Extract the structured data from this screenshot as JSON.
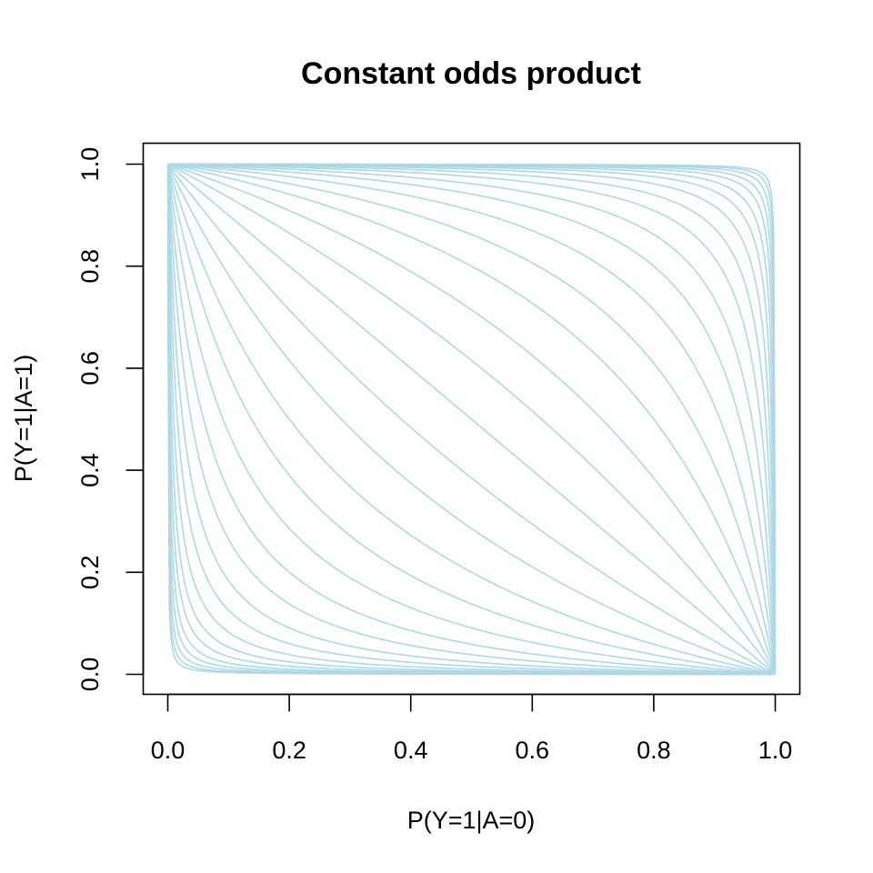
{
  "chart_data": {
    "type": "line",
    "title": "Constant odds product",
    "xlabel": "P(Y=1|A=0)",
    "ylabel": "P(Y=1|A=1)",
    "xlim": [
      0,
      1
    ],
    "ylim": [
      0,
      1
    ],
    "xticks": [
      "0.0",
      "0.2",
      "0.4",
      "0.6",
      "0.8",
      "1.0"
    ],
    "yticks": [
      "0.0",
      "0.2",
      "0.4",
      "0.6",
      "0.8",
      "1.0"
    ],
    "grid": false,
    "legend": "none",
    "line_color": "#ADD8E6",
    "relation": "odds(y) * odds(x) = k",
    "odds_products": [
      0.0004,
      0.000625,
      0.001,
      0.0016,
      0.0025,
      0.004,
      0.00625,
      0.01,
      0.016,
      0.025,
      0.04,
      0.0625,
      0.1,
      0.16,
      0.25,
      0.4,
      0.625,
      1,
      1.6,
      2.5,
      4,
      6.25,
      10,
      16,
      25,
      40,
      62.5,
      100,
      160,
      250,
      400,
      625,
      1000,
      1600,
      2500
    ]
  }
}
